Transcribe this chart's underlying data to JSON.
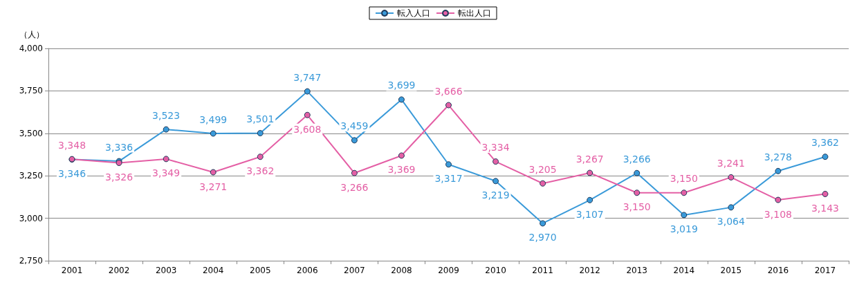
{
  "chart_data": {
    "type": "line",
    "ylabel": "（人）",
    "categories": [
      "2001",
      "2002",
      "2003",
      "2004",
      "2005",
      "2006",
      "2007",
      "2008",
      "2009",
      "2010",
      "2011",
      "2012",
      "2013",
      "2014",
      "2015",
      "2016",
      "2017"
    ],
    "series": [
      {
        "name": "転入人口",
        "color": "#3a9ad9",
        "values": [
          3346,
          3336,
          3523,
          3499,
          3501,
          3747,
          3459,
          3699,
          3317,
          3219,
          2970,
          3107,
          3266,
          3019,
          3064,
          3278,
          3362
        ],
        "value_labels": [
          "3,346",
          "3,336",
          "3,523",
          "3,499",
          "3,501",
          "3,747",
          "3,459",
          "3,699",
          "3,317",
          "3,219",
          "2,970",
          "3,107",
          "3,266",
          "3,019",
          "3,064",
          "3,278",
          "3,362"
        ]
      },
      {
        "name": "転出人口",
        "color": "#e45fa5",
        "values": [
          3348,
          3326,
          3349,
          3271,
          3362,
          3608,
          3266,
          3369,
          3666,
          3334,
          3205,
          3267,
          3150,
          3150,
          3241,
          3108,
          3143
        ],
        "value_labels": [
          "3,348",
          "3,326",
          "3,349",
          "3,271",
          "3,362",
          "3,608",
          "3,266",
          "3,369",
          "3,666",
          "3,334",
          "3,205",
          "3,267",
          "3,150",
          "3,150",
          "3,241",
          "3,108",
          "3,143"
        ]
      }
    ],
    "ylim": [
      2750,
      4000
    ],
    "yticks": [
      {
        "value": 2750,
        "label": "2,750"
      },
      {
        "value": 3000,
        "label": "3,000"
      },
      {
        "value": 3250,
        "label": "3,250"
      },
      {
        "value": 3500,
        "label": "3,500"
      },
      {
        "value": 3750,
        "label": "3,750"
      },
      {
        "value": 4000,
        "label": "4,000"
      }
    ],
    "grid": "y",
    "legend": "top",
    "marker": "circle",
    "line_style": "solid"
  }
}
